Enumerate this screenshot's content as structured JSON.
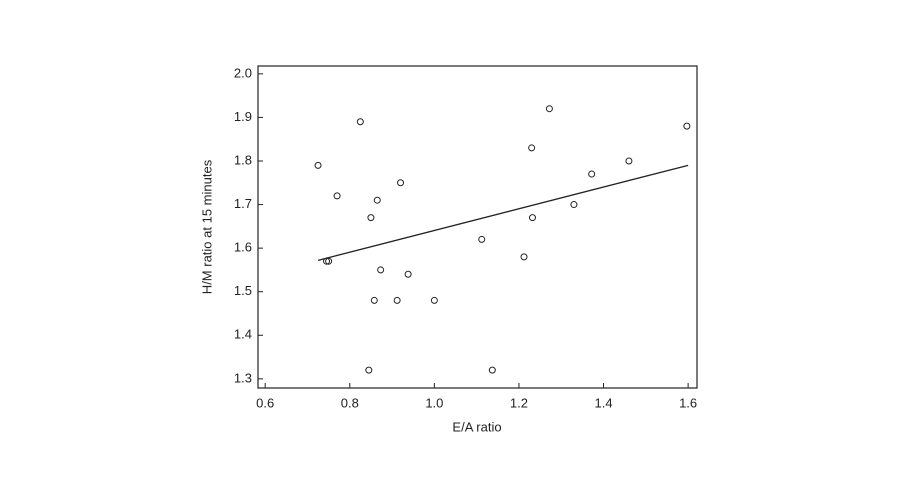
{
  "chart_data": {
    "type": "scatter",
    "x_label": "E/A ratio",
    "y_label": "H/M ratio at 15 minutes",
    "series": [
      {
        "color": "#222222",
        "x": [
          0.725,
          0.745,
          0.75,
          0.77,
          0.825,
          0.845,
          0.85,
          0.858,
          0.865,
          0.873,
          0.92,
          0.938,
          0.912,
          1.0,
          1.112,
          1.137,
          1.212,
          1.23,
          1.232,
          1.272,
          1.33,
          1.372,
          1.46,
          1.597
        ],
        "values": [
          1.79,
          1.57,
          1.57,
          1.72,
          1.89,
          1.32,
          1.67,
          1.48,
          1.71,
          1.55,
          1.75,
          1.54,
          1.48,
          1.48,
          1.62,
          1.32,
          1.58,
          1.83,
          1.67,
          1.92,
          1.7,
          1.77,
          1.8,
          1.88
        ]
      }
    ],
    "fit_line": {
      "x": [
        0.725,
        1.6
      ],
      "values": [
        1.572,
        1.79
      ]
    },
    "xlim": [
      0.583,
      1.621
    ],
    "ylim": [
      1.279,
      2.018
    ],
    "xticks": [
      0.6,
      0.8,
      {
        "value": 1,
        "label": "1.0"
      },
      1.2,
      1.4,
      1.6
    ],
    "yticks": [
      1.3,
      1.4,
      1.5,
      1.6,
      1.7,
      1.8,
      1.9,
      {
        "value": 2,
        "label": "2.0"
      }
    ]
  }
}
